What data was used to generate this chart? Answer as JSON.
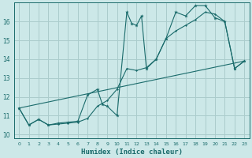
{
  "title": "",
  "xlabel": "Humidex (Indice chaleur)",
  "bg_color": "#cce8e8",
  "grid_color": "#aacccc",
  "line_color": "#1a6b6b",
  "xlim": [
    -0.5,
    23.5
  ],
  "ylim": [
    9.8,
    17.0
  ],
  "yticks": [
    10,
    11,
    12,
    13,
    14,
    15,
    16
  ],
  "xticks": [
    0,
    1,
    2,
    3,
    4,
    5,
    6,
    7,
    8,
    9,
    10,
    11,
    12,
    13,
    14,
    15,
    16,
    17,
    18,
    19,
    20,
    21,
    22,
    23
  ],
  "series1_x": [
    0,
    1,
    2,
    3,
    4,
    5,
    6,
    7,
    8,
    8.5,
    9,
    10,
    11,
    11.5,
    12,
    12.5,
    13,
    14,
    15,
    16,
    17,
    18,
    19,
    20,
    21,
    22,
    23
  ],
  "series1_y": [
    11.4,
    10.5,
    10.8,
    10.5,
    10.6,
    10.65,
    10.7,
    12.1,
    12.4,
    11.6,
    11.5,
    11.0,
    16.5,
    15.9,
    15.8,
    16.3,
    13.5,
    14.0,
    15.1,
    16.5,
    16.3,
    16.85,
    16.85,
    16.2,
    16.0,
    13.5,
    13.9
  ],
  "series2_x": [
    0,
    1,
    2,
    3,
    4,
    5,
    6,
    7,
    8,
    9,
    10,
    11,
    12,
    13,
    14,
    15,
    16,
    17,
    18,
    19,
    20,
    21,
    22,
    23
  ],
  "series2_y": [
    11.4,
    10.5,
    10.8,
    10.5,
    10.55,
    10.6,
    10.65,
    10.85,
    11.5,
    11.8,
    12.4,
    13.5,
    13.4,
    13.55,
    14.0,
    15.1,
    15.5,
    15.8,
    16.1,
    16.5,
    16.4,
    16.0,
    13.5,
    13.9
  ],
  "series3_x": [
    0,
    23
  ],
  "series3_y": [
    11.4,
    13.9
  ]
}
